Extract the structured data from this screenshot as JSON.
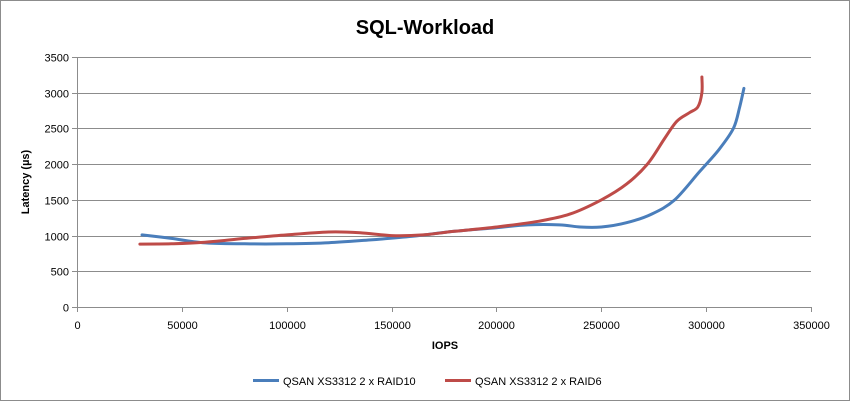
{
  "chart_data": {
    "type": "line",
    "title": "SQL-Workload",
    "xlabel": "IOPS",
    "ylabel": "Latency (µs)",
    "xlim": [
      0,
      350000
    ],
    "ylim": [
      0,
      3500
    ],
    "xticks": [
      0,
      50000,
      100000,
      150000,
      200000,
      250000,
      300000,
      350000
    ],
    "yticks": [
      0,
      500,
      1000,
      1500,
      2000,
      2500,
      3000,
      3500
    ],
    "grid": "horizontal",
    "legend_position": "bottom",
    "series": [
      {
        "name": "QSAN XS3312 2 x RAID10",
        "color": "#4a7ebb",
        "points": [
          [
            31000,
            1010
          ],
          [
            45000,
            960
          ],
          [
            60000,
            900
          ],
          [
            80000,
            885
          ],
          [
            100000,
            885
          ],
          [
            120000,
            900
          ],
          [
            140000,
            940
          ],
          [
            160000,
            990
          ],
          [
            180000,
            1060
          ],
          [
            200000,
            1110
          ],
          [
            215000,
            1150
          ],
          [
            230000,
            1150
          ],
          [
            240000,
            1120
          ],
          [
            250000,
            1120
          ],
          [
            262000,
            1180
          ],
          [
            274000,
            1300
          ],
          [
            285000,
            1500
          ],
          [
            297000,
            1900
          ],
          [
            306000,
            2200
          ],
          [
            313000,
            2500
          ],
          [
            316000,
            2800
          ],
          [
            318000,
            3060
          ]
        ]
      },
      {
        "name": "QSAN XS3312 2 x RAID6",
        "color": "#be4b48",
        "points": [
          [
            30000,
            880
          ],
          [
            45000,
            885
          ],
          [
            60000,
            905
          ],
          [
            80000,
            960
          ],
          [
            100000,
            1010
          ],
          [
            120000,
            1050
          ],
          [
            135000,
            1040
          ],
          [
            150000,
            1000
          ],
          [
            165000,
            1010
          ],
          [
            180000,
            1060
          ],
          [
            200000,
            1120
          ],
          [
            220000,
            1200
          ],
          [
            235000,
            1300
          ],
          [
            250000,
            1500
          ],
          [
            262000,
            1720
          ],
          [
            272000,
            2000
          ],
          [
            280000,
            2350
          ],
          [
            286000,
            2600
          ],
          [
            292000,
            2720
          ],
          [
            296000,
            2800
          ],
          [
            298000,
            3000
          ],
          [
            298000,
            3220
          ]
        ]
      }
    ]
  }
}
